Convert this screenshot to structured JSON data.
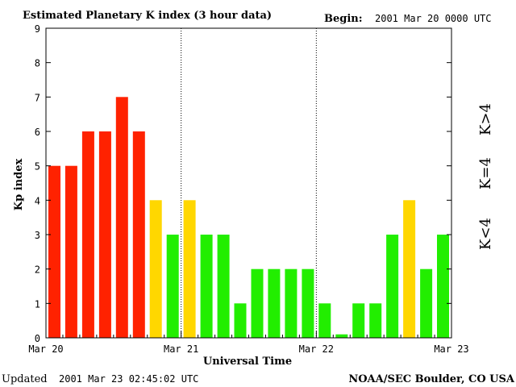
{
  "header": {
    "title": "Estimated Planetary K index (3 hour data)",
    "begin_label": "Begin:",
    "begin_value": "2001 Mar 20 0000 UTC"
  },
  "footer": {
    "updated_label": "Updated",
    "updated_value": "2001 Mar 23 02:45:02 UTC",
    "source": "NOAA/SEC Boulder, CO USA"
  },
  "legend": {
    "low": "K<4",
    "mid": "K=4",
    "high": "K>4"
  },
  "colors": {
    "low": "#22ee00",
    "mid": "#ffd700",
    "high": "#ff2200"
  },
  "chart_data": {
    "type": "bar",
    "title": "Estimated Planetary K index (3 hour data)",
    "xlabel": "Universal Time",
    "ylabel": "Kp index",
    "ylim": [
      0,
      9
    ],
    "yticks": [
      "0",
      "1",
      "2",
      "3",
      "4",
      "5",
      "6",
      "7",
      "8",
      "9"
    ],
    "day_labels": [
      "Mar 20",
      "Mar 21",
      "Mar 22",
      "Mar 23"
    ],
    "bars_per_day": 8,
    "values": [
      5,
      5,
      6,
      6,
      7,
      6,
      4,
      3,
      4,
      3,
      3,
      1,
      2,
      2,
      2,
      2,
      1,
      0.1,
      1,
      1,
      3,
      4,
      2,
      3
    ],
    "color_rule": "green if K<4, yellow if K=4, red if K>4",
    "grid": false,
    "day_separators": "dotted"
  }
}
